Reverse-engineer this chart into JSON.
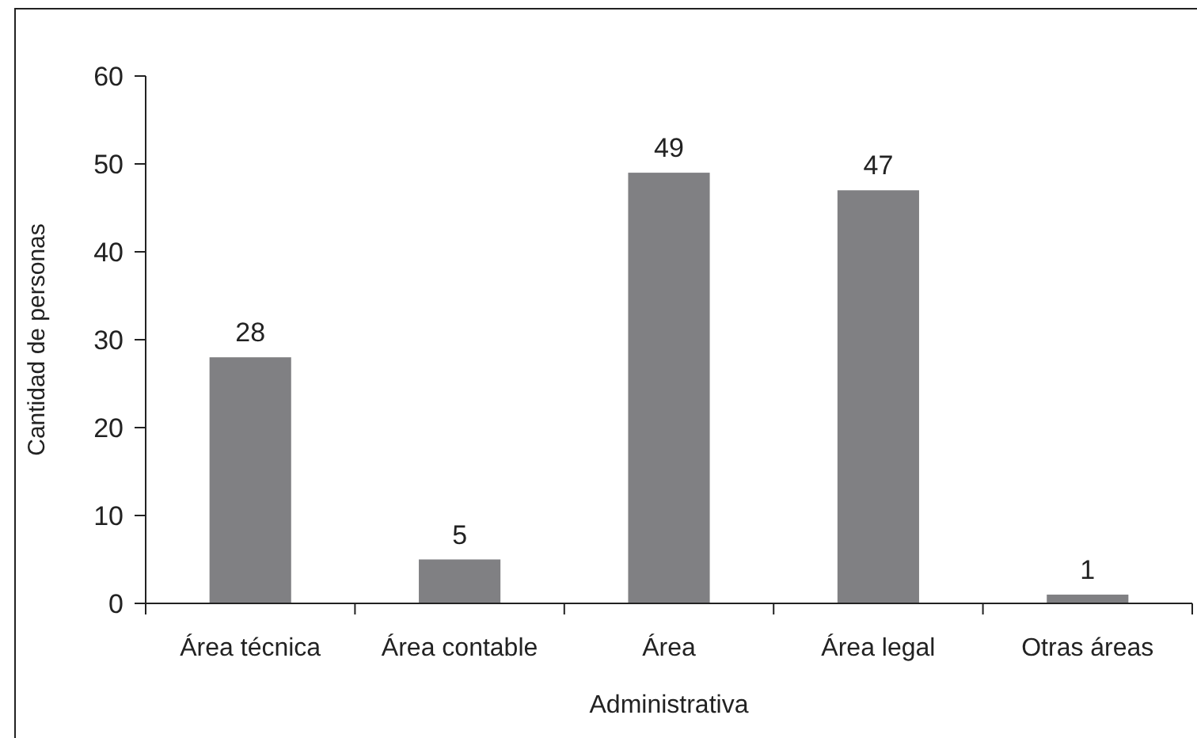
{
  "chart_data": {
    "type": "bar",
    "ylabel": "Cantidad de personas",
    "categories": [
      "Área técnica",
      "Área contable",
      "Área Administrativa",
      "Área legal",
      "Otras áreas"
    ],
    "values": [
      28,
      5,
      49,
      47,
      1
    ],
    "color": "#808083",
    "ylim": [
      0,
      60
    ],
    "yticks": [
      0,
      10,
      20,
      30,
      40,
      50,
      60
    ],
    "grid": false,
    "data_labels": true
  }
}
